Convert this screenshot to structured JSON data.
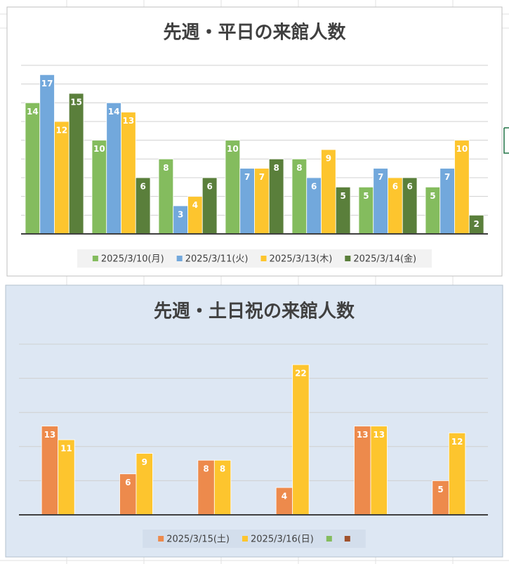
{
  "chart_data": [
    {
      "type": "bar",
      "title": "先週・平日の来館人数",
      "categories": [
        null,
        null,
        null,
        null,
        null,
        null,
        null
      ],
      "series": [
        {
          "name": "2025/3/10(月)",
          "color": "#84bc5e",
          "values": [
            14,
            10,
            8,
            10,
            8,
            5,
            5
          ]
        },
        {
          "name": "2025/3/11(火)",
          "color": "#72a8dc",
          "values": [
            17,
            14,
            3,
            7,
            6,
            7,
            7
          ]
        },
        {
          "name": "2025/3/13(木)",
          "color": "#fdc52e",
          "values": [
            12,
            13,
            4,
            7,
            9,
            6,
            10
          ]
        },
        {
          "name": "2025/3/14(金)",
          "color": "#5a7f3b",
          "values": [
            15,
            6,
            6,
            8,
            5,
            6,
            2
          ]
        }
      ],
      "ylim": [
        0,
        18
      ],
      "yticks": [
        0,
        2,
        4,
        6,
        8,
        10,
        12,
        14,
        16,
        18
      ],
      "grid": true,
      "legend": "bottom"
    },
    {
      "type": "bar",
      "title": "先週・土日祝の来館人数",
      "categories": [
        null,
        null,
        null,
        null,
        null,
        null
      ],
      "series": [
        {
          "name": "2025/3/15(土)",
          "color": "#ed8a4c",
          "values": [
            13,
            6,
            8,
            4,
            13,
            5
          ]
        },
        {
          "name": "2025/3/16(日)",
          "color": "#fdc52e",
          "values": [
            11,
            9,
            8,
            22,
            13,
            12
          ]
        },
        {
          "name": null,
          "color": "#84bc5e",
          "values": [
            null,
            null,
            null,
            null,
            null,
            null
          ]
        },
        {
          "name": null,
          "color": "#a0522d",
          "values": [
            null,
            null,
            null,
            null,
            null,
            null
          ]
        }
      ],
      "ylim": [
        0,
        25
      ],
      "yticks": [
        0,
        5,
        10,
        15,
        20,
        25
      ],
      "grid": true,
      "legend": "bottom"
    }
  ]
}
